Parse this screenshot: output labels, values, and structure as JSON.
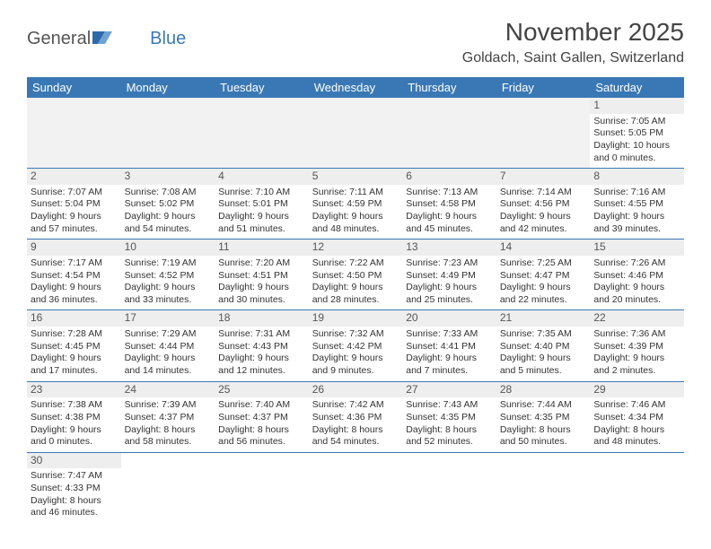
{
  "brand": {
    "general": "General",
    "blue": "Blue"
  },
  "title": "November 2025",
  "location": "Goldach, Saint Gallen, Switzerland",
  "weekdays": [
    "Sunday",
    "Monday",
    "Tuesday",
    "Wednesday",
    "Thursday",
    "Friday",
    "Saturday"
  ],
  "colors": {
    "header_bg": "#3a78b5",
    "header_fg": "#ffffff",
    "daynum_bg": "#eeeeee",
    "empty_bg": "#f2f2f2",
    "rule": "#3a78b5",
    "text": "#333333"
  },
  "weeks": [
    [
      null,
      null,
      null,
      null,
      null,
      null,
      {
        "d": "1",
        "sr": "Sunrise: 7:05 AM",
        "ss": "Sunset: 5:05 PM",
        "dl1": "Daylight: 10 hours",
        "dl2": "and 0 minutes."
      }
    ],
    [
      {
        "d": "2",
        "sr": "Sunrise: 7:07 AM",
        "ss": "Sunset: 5:04 PM",
        "dl1": "Daylight: 9 hours",
        "dl2": "and 57 minutes."
      },
      {
        "d": "3",
        "sr": "Sunrise: 7:08 AM",
        "ss": "Sunset: 5:02 PM",
        "dl1": "Daylight: 9 hours",
        "dl2": "and 54 minutes."
      },
      {
        "d": "4",
        "sr": "Sunrise: 7:10 AM",
        "ss": "Sunset: 5:01 PM",
        "dl1": "Daylight: 9 hours",
        "dl2": "and 51 minutes."
      },
      {
        "d": "5",
        "sr": "Sunrise: 7:11 AM",
        "ss": "Sunset: 4:59 PM",
        "dl1": "Daylight: 9 hours",
        "dl2": "and 48 minutes."
      },
      {
        "d": "6",
        "sr": "Sunrise: 7:13 AM",
        "ss": "Sunset: 4:58 PM",
        "dl1": "Daylight: 9 hours",
        "dl2": "and 45 minutes."
      },
      {
        "d": "7",
        "sr": "Sunrise: 7:14 AM",
        "ss": "Sunset: 4:56 PM",
        "dl1": "Daylight: 9 hours",
        "dl2": "and 42 minutes."
      },
      {
        "d": "8",
        "sr": "Sunrise: 7:16 AM",
        "ss": "Sunset: 4:55 PM",
        "dl1": "Daylight: 9 hours",
        "dl2": "and 39 minutes."
      }
    ],
    [
      {
        "d": "9",
        "sr": "Sunrise: 7:17 AM",
        "ss": "Sunset: 4:54 PM",
        "dl1": "Daylight: 9 hours",
        "dl2": "and 36 minutes."
      },
      {
        "d": "10",
        "sr": "Sunrise: 7:19 AM",
        "ss": "Sunset: 4:52 PM",
        "dl1": "Daylight: 9 hours",
        "dl2": "and 33 minutes."
      },
      {
        "d": "11",
        "sr": "Sunrise: 7:20 AM",
        "ss": "Sunset: 4:51 PM",
        "dl1": "Daylight: 9 hours",
        "dl2": "and 30 minutes."
      },
      {
        "d": "12",
        "sr": "Sunrise: 7:22 AM",
        "ss": "Sunset: 4:50 PM",
        "dl1": "Daylight: 9 hours",
        "dl2": "and 28 minutes."
      },
      {
        "d": "13",
        "sr": "Sunrise: 7:23 AM",
        "ss": "Sunset: 4:49 PM",
        "dl1": "Daylight: 9 hours",
        "dl2": "and 25 minutes."
      },
      {
        "d": "14",
        "sr": "Sunrise: 7:25 AM",
        "ss": "Sunset: 4:47 PM",
        "dl1": "Daylight: 9 hours",
        "dl2": "and 22 minutes."
      },
      {
        "d": "15",
        "sr": "Sunrise: 7:26 AM",
        "ss": "Sunset: 4:46 PM",
        "dl1": "Daylight: 9 hours",
        "dl2": "and 20 minutes."
      }
    ],
    [
      {
        "d": "16",
        "sr": "Sunrise: 7:28 AM",
        "ss": "Sunset: 4:45 PM",
        "dl1": "Daylight: 9 hours",
        "dl2": "and 17 minutes."
      },
      {
        "d": "17",
        "sr": "Sunrise: 7:29 AM",
        "ss": "Sunset: 4:44 PM",
        "dl1": "Daylight: 9 hours",
        "dl2": "and 14 minutes."
      },
      {
        "d": "18",
        "sr": "Sunrise: 7:31 AM",
        "ss": "Sunset: 4:43 PM",
        "dl1": "Daylight: 9 hours",
        "dl2": "and 12 minutes."
      },
      {
        "d": "19",
        "sr": "Sunrise: 7:32 AM",
        "ss": "Sunset: 4:42 PM",
        "dl1": "Daylight: 9 hours",
        "dl2": "and 9 minutes."
      },
      {
        "d": "20",
        "sr": "Sunrise: 7:33 AM",
        "ss": "Sunset: 4:41 PM",
        "dl1": "Daylight: 9 hours",
        "dl2": "and 7 minutes."
      },
      {
        "d": "21",
        "sr": "Sunrise: 7:35 AM",
        "ss": "Sunset: 4:40 PM",
        "dl1": "Daylight: 9 hours",
        "dl2": "and 5 minutes."
      },
      {
        "d": "22",
        "sr": "Sunrise: 7:36 AM",
        "ss": "Sunset: 4:39 PM",
        "dl1": "Daylight: 9 hours",
        "dl2": "and 2 minutes."
      }
    ],
    [
      {
        "d": "23",
        "sr": "Sunrise: 7:38 AM",
        "ss": "Sunset: 4:38 PM",
        "dl1": "Daylight: 9 hours",
        "dl2": "and 0 minutes."
      },
      {
        "d": "24",
        "sr": "Sunrise: 7:39 AM",
        "ss": "Sunset: 4:37 PM",
        "dl1": "Daylight: 8 hours",
        "dl2": "and 58 minutes."
      },
      {
        "d": "25",
        "sr": "Sunrise: 7:40 AM",
        "ss": "Sunset: 4:37 PM",
        "dl1": "Daylight: 8 hours",
        "dl2": "and 56 minutes."
      },
      {
        "d": "26",
        "sr": "Sunrise: 7:42 AM",
        "ss": "Sunset: 4:36 PM",
        "dl1": "Daylight: 8 hours",
        "dl2": "and 54 minutes."
      },
      {
        "d": "27",
        "sr": "Sunrise: 7:43 AM",
        "ss": "Sunset: 4:35 PM",
        "dl1": "Daylight: 8 hours",
        "dl2": "and 52 minutes."
      },
      {
        "d": "28",
        "sr": "Sunrise: 7:44 AM",
        "ss": "Sunset: 4:35 PM",
        "dl1": "Daylight: 8 hours",
        "dl2": "and 50 minutes."
      },
      {
        "d": "29",
        "sr": "Sunrise: 7:46 AM",
        "ss": "Sunset: 4:34 PM",
        "dl1": "Daylight: 8 hours",
        "dl2": "and 48 minutes."
      }
    ],
    [
      {
        "d": "30",
        "sr": "Sunrise: 7:47 AM",
        "ss": "Sunset: 4:33 PM",
        "dl1": "Daylight: 8 hours",
        "dl2": "and 46 minutes."
      },
      null,
      null,
      null,
      null,
      null,
      null
    ]
  ]
}
